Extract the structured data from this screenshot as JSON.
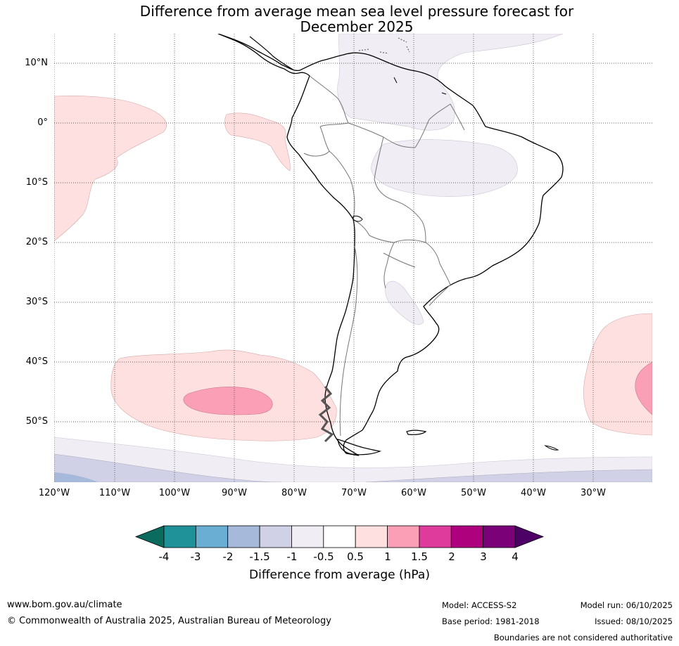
{
  "title": {
    "line1": "Difference from average mean sea level pressure forecast for",
    "line2": "December 2025"
  },
  "map": {
    "latitude_labels": [
      "10°N",
      "0°",
      "10°S",
      "20°S",
      "30°S",
      "40°S",
      "50°S"
    ],
    "longitude_labels": [
      "120°W",
      "110°W",
      "100°W",
      "90°W",
      "80°W",
      "70°W",
      "60°W",
      "50°W",
      "40°W",
      "30°W"
    ]
  },
  "legend": {
    "title": "Difference from average (hPa)",
    "ticks": [
      "-4",
      "-3",
      "-2",
      "-1.5",
      "-1",
      "-0.5",
      "0.5",
      "1",
      "1.5",
      "2",
      "3",
      "4"
    ],
    "colors": [
      "#1f9299",
      "#6aaed3",
      "#a7b9db",
      "#d0d1e6",
      "#f1edf4",
      "#ffffff",
      "#fde0df",
      "#fa9fb5",
      "#df3b9d",
      "#ae017e",
      "#7a0177"
    ],
    "low_arrow_color": "#0b6b5e",
    "high_arrow_color": "#4d0065"
  },
  "footer": {
    "website": "www.bom.gov.au/climate",
    "copyright": "© Commonwealth of Australia 2025, Australian Bureau of Meteorology",
    "model": "Model: ACCESS-S2",
    "base_period": "Base period: 1981-2018",
    "model_run": "Model run: 06/10/2025",
    "issued": "Issued: 08/10/2025",
    "disclaimer": "Boundaries are not considered authoritative"
  }
}
